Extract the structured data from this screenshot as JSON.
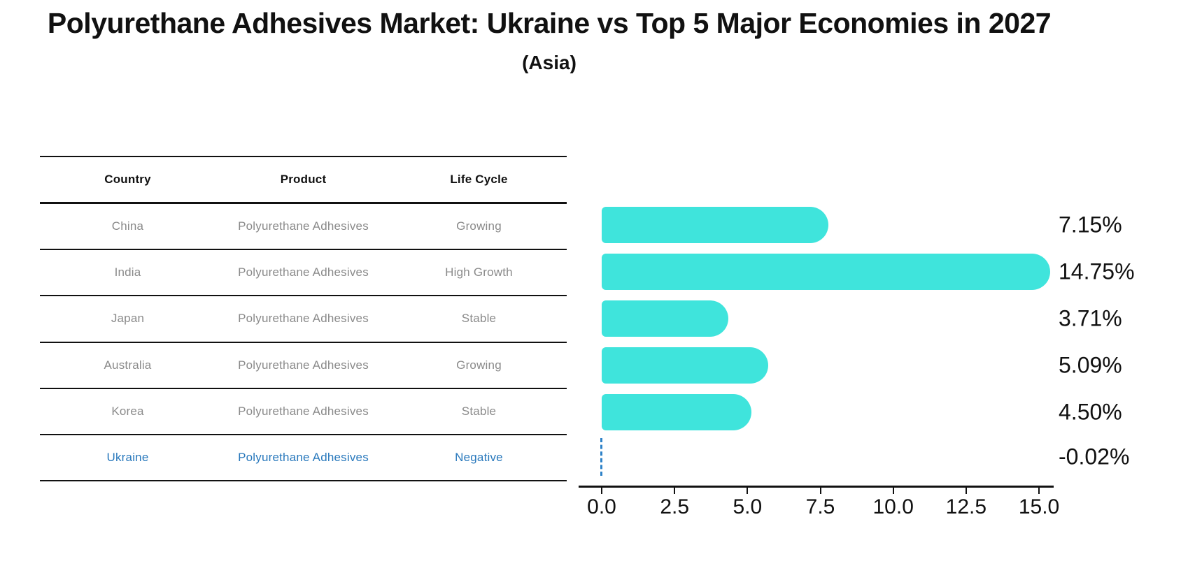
{
  "title": "Polyurethane Adhesives Market: Ukraine vs Top 5 Major Economies in 2027",
  "subtitle": "(Asia)",
  "table": {
    "headers": [
      "Country",
      "Product",
      "Life Cycle"
    ],
    "rows": [
      {
        "country": "China",
        "product": "Polyurethane Adhesives",
        "life_cycle": "Growing",
        "highlight": false
      },
      {
        "country": "India",
        "product": "Polyurethane Adhesives",
        "life_cycle": "High Growth",
        "highlight": false
      },
      {
        "country": "Japan",
        "product": "Polyurethane Adhesives",
        "life_cycle": "Stable",
        "highlight": false
      },
      {
        "country": "Australia",
        "product": "Polyurethane Adhesives",
        "life_cycle": "Growing",
        "highlight": false
      },
      {
        "country": "Korea",
        "product": "Polyurethane Adhesives",
        "life_cycle": "Stable",
        "highlight": false
      },
      {
        "country": "Ukraine",
        "product": "Polyurethane Adhesives",
        "life_cycle": "Negative",
        "highlight": true
      }
    ]
  },
  "chart_data": {
    "type": "bar",
    "orientation": "horizontal",
    "categories": [
      "China",
      "India",
      "Japan",
      "Australia",
      "Korea",
      "Ukraine"
    ],
    "values": [
      7.15,
      14.75,
      3.71,
      5.09,
      4.5,
      -0.02
    ],
    "value_labels": [
      "7.15%",
      "14.75%",
      "3.71%",
      "5.09%",
      "4.50%",
      "-0.02%"
    ],
    "title": "",
    "xlabel": "",
    "ylabel": "",
    "xlim": [
      0,
      15.5
    ],
    "xticks": [
      0.0,
      2.5,
      5.0,
      7.5,
      10.0,
      12.5,
      15.0
    ],
    "xtick_labels": [
      "0.0",
      "2.5",
      "5.0",
      "7.5",
      "10.0",
      "12.5",
      "15.0"
    ],
    "grid": false,
    "legend": "none",
    "bar_color": "#3fe4dc",
    "negative_bar_style": "dashed-line",
    "negative_bar_color": "#2e82c8",
    "highlight_text_color": "#2878bc"
  }
}
